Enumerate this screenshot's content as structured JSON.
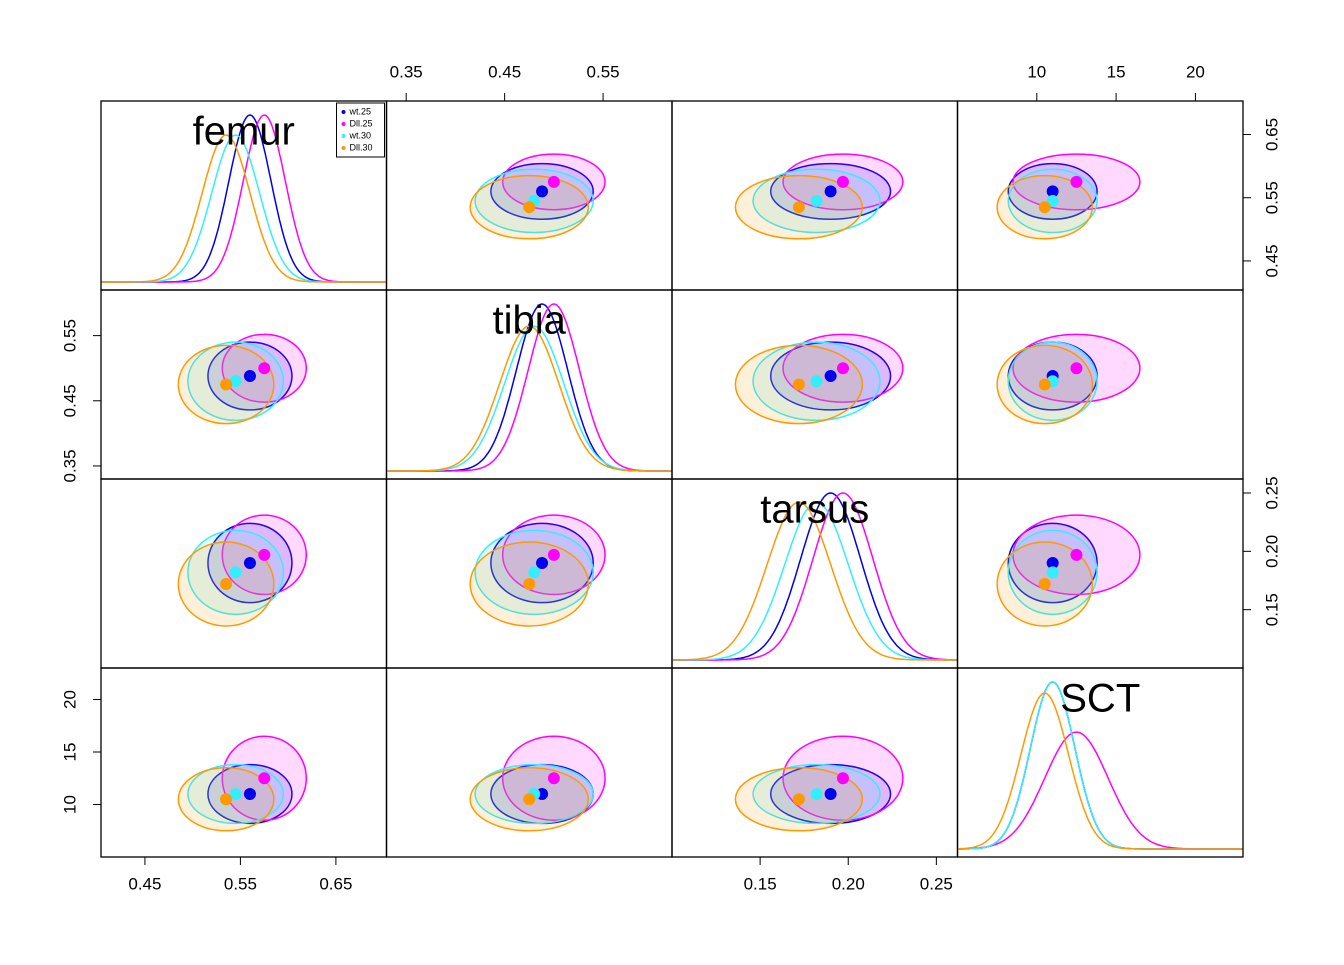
{
  "chart_data": {
    "type": "scatter_matrix",
    "variables": [
      {
        "name": "femur",
        "lim": [
          0.404,
          0.703
        ],
        "ticks": [
          0.45,
          0.55,
          0.65
        ]
      },
      {
        "name": "tibia",
        "lim": [
          0.33,
          0.62
        ],
        "ticks": [
          0.35,
          0.45,
          0.55
        ]
      },
      {
        "name": "tarsus",
        "lim": [
          0.1,
          0.262
        ],
        "ticks": [
          0.15,
          {
            "value": 0.2,
            "label": "0.20"
          },
          0.25
        ]
      },
      {
        "name": "SCT",
        "lim": [
          5,
          23
        ],
        "ticks": [
          10,
          15,
          20
        ]
      }
    ],
    "groups": [
      {
        "name": "wt.25",
        "color": "#0000ee",
        "means": [
          0.56,
          0.488,
          0.19,
          11
        ],
        "sds": [
          0.022,
          0.026,
          0.017,
          1.4
        ]
      },
      {
        "name": "Dll.25",
        "color": "#ff00ff",
        "means": [
          0.575,
          0.5,
          0.197,
          12.5
        ],
        "sds": [
          0.022,
          0.026,
          0.017,
          2
        ]
      },
      {
        "name": "wt.30",
        "color": "#33eeff",
        "means": [
          0.545,
          0.48,
          0.182,
          11
        ],
        "sds": [
          0.025,
          0.03,
          0.018,
          1.4
        ]
      },
      {
        "name": "Dll.30",
        "color": "#ff9900",
        "means": [
          0.535,
          0.475,
          0.172,
          10.5
        ],
        "sds": [
          0.025,
          0.03,
          0.018,
          1.5
        ]
      }
    ],
    "legend_position": "top-right"
  }
}
